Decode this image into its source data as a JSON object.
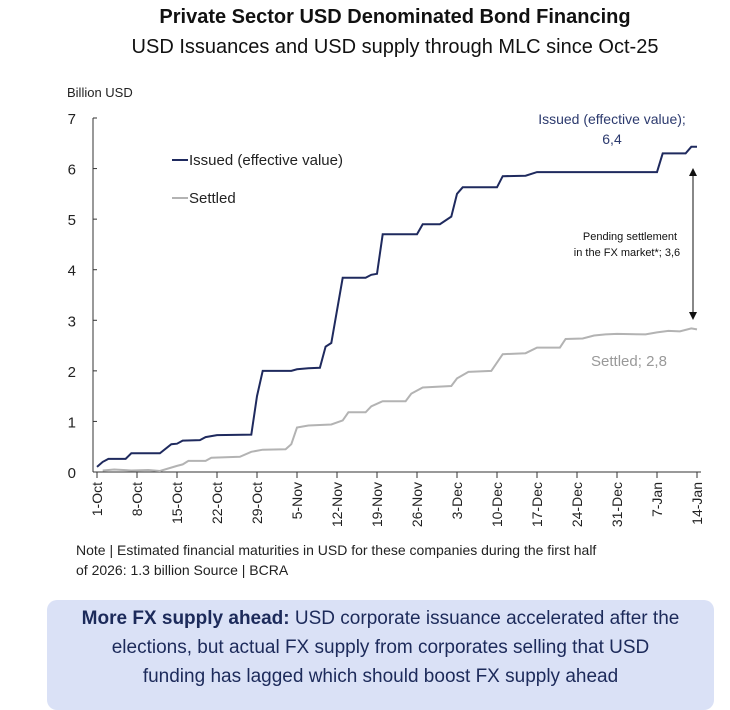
{
  "chart_data": {
    "type": "line",
    "title": "Private Sector USD Denominated Bond Financing",
    "subtitle": "USD Issuances and USD supply through MLC since Oct-25",
    "ylabel": "Billion USD",
    "ylim": [
      0,
      7
    ],
    "yticks": [
      "0",
      "1",
      "2",
      "3",
      "4",
      "5",
      "6",
      "7"
    ],
    "xlim": [
      "2025-10-01",
      "2026-01-14"
    ],
    "xticks": [
      {
        "date": "2025-10-01",
        "label": "1-Oct"
      },
      {
        "date": "2025-10-08",
        "label": "8-Oct"
      },
      {
        "date": "2025-10-15",
        "label": "15-Oct"
      },
      {
        "date": "2025-10-22",
        "label": "22-Oct"
      },
      {
        "date": "2025-10-29",
        "label": "29-Oct"
      },
      {
        "date": "2025-11-05",
        "label": "5-Nov"
      },
      {
        "date": "2025-11-12",
        "label": "12-Nov"
      },
      {
        "date": "2025-11-19",
        "label": "19-Nov"
      },
      {
        "date": "2025-11-26",
        "label": "26-Nov"
      },
      {
        "date": "2025-12-03",
        "label": "3-Dec"
      },
      {
        "date": "2025-12-10",
        "label": "10-Dec"
      },
      {
        "date": "2025-12-17",
        "label": "17-Dec"
      },
      {
        "date": "2025-12-24",
        "label": "24-Dec"
      },
      {
        "date": "2025-12-31",
        "label": "31-Dec"
      },
      {
        "date": "2026-01-07",
        "label": "7-Jan"
      },
      {
        "date": "2026-01-14",
        "label": "14-Jan"
      }
    ],
    "grid": false,
    "legend_placement": "top-left",
    "series": [
      {
        "name": "Issued (effective value)",
        "color": "#1f2a5e",
        "points": [
          [
            "2025-10-01",
            0.1
          ],
          [
            "2025-10-02",
            0.2
          ],
          [
            "2025-10-03",
            0.26
          ],
          [
            "2025-10-06",
            0.26
          ],
          [
            "2025-10-07",
            0.37
          ],
          [
            "2025-10-12",
            0.37
          ],
          [
            "2025-10-14",
            0.55
          ],
          [
            "2025-10-15",
            0.56
          ],
          [
            "2025-10-16",
            0.62
          ],
          [
            "2025-10-19",
            0.63
          ],
          [
            "2025-10-20",
            0.69
          ],
          [
            "2025-10-22",
            0.73
          ],
          [
            "2025-10-28",
            0.74
          ],
          [
            "2025-10-29",
            1.5
          ],
          [
            "2025-10-30",
            2.0
          ],
          [
            "2025-11-04",
            2.0
          ],
          [
            "2025-11-05",
            2.03
          ],
          [
            "2025-11-07",
            2.05
          ],
          [
            "2025-11-09",
            2.06
          ],
          [
            "2025-11-10",
            2.48
          ],
          [
            "2025-11-11",
            2.55
          ],
          [
            "2025-11-13",
            3.84
          ],
          [
            "2025-11-17",
            3.84
          ],
          [
            "2025-11-18",
            3.9
          ],
          [
            "2025-11-19",
            3.92
          ],
          [
            "2025-11-20",
            4.7
          ],
          [
            "2025-11-26",
            4.7
          ],
          [
            "2025-11-27",
            4.9
          ],
          [
            "2025-11-30",
            4.9
          ],
          [
            "2025-12-02",
            5.05
          ],
          [
            "2025-12-03",
            5.5
          ],
          [
            "2025-12-04",
            5.63
          ],
          [
            "2025-12-10",
            5.63
          ],
          [
            "2025-12-11",
            5.85
          ],
          [
            "2025-12-15",
            5.86
          ],
          [
            "2025-12-17",
            5.93
          ],
          [
            "2026-01-07",
            5.93
          ],
          [
            "2026-01-08",
            6.3
          ],
          [
            "2026-01-12",
            6.3
          ],
          [
            "2026-01-13",
            6.43
          ],
          [
            "2026-01-14",
            6.43
          ]
        ]
      },
      {
        "name": "Settled",
        "color": "#b3b3b3",
        "points": [
          [
            "2025-10-02",
            0.03
          ],
          [
            "2025-10-04",
            0.05
          ],
          [
            "2025-10-07",
            0.03
          ],
          [
            "2025-10-10",
            0.04
          ],
          [
            "2025-10-12",
            0.02
          ],
          [
            "2025-10-15",
            0.12
          ],
          [
            "2025-10-16",
            0.15
          ],
          [
            "2025-10-17",
            0.22
          ],
          [
            "2025-10-20",
            0.22
          ],
          [
            "2025-10-21",
            0.28
          ],
          [
            "2025-10-26",
            0.3
          ],
          [
            "2025-10-28",
            0.4
          ],
          [
            "2025-10-30",
            0.44
          ],
          [
            "2025-11-03",
            0.45
          ],
          [
            "2025-11-04",
            0.55
          ],
          [
            "2025-11-05",
            0.88
          ],
          [
            "2025-11-07",
            0.92
          ],
          [
            "2025-11-11",
            0.94
          ],
          [
            "2025-11-13",
            1.02
          ],
          [
            "2025-11-14",
            1.18
          ],
          [
            "2025-11-17",
            1.18
          ],
          [
            "2025-11-18",
            1.3
          ],
          [
            "2025-11-20",
            1.4
          ],
          [
            "2025-11-24",
            1.4
          ],
          [
            "2025-11-25",
            1.55
          ],
          [
            "2025-11-27",
            1.67
          ],
          [
            "2025-12-02",
            1.7
          ],
          [
            "2025-12-03",
            1.85
          ],
          [
            "2025-12-05",
            1.98
          ],
          [
            "2025-12-09",
            2.0
          ],
          [
            "2025-12-11",
            2.33
          ],
          [
            "2025-12-15",
            2.35
          ],
          [
            "2025-12-17",
            2.46
          ],
          [
            "2025-12-21",
            2.46
          ],
          [
            "2025-12-22",
            2.63
          ],
          [
            "2025-12-25",
            2.64
          ],
          [
            "2025-12-27",
            2.7
          ],
          [
            "2025-12-29",
            2.72
          ],
          [
            "2025-12-31",
            2.73
          ],
          [
            "2026-01-05",
            2.72
          ],
          [
            "2026-01-07",
            2.76
          ],
          [
            "2026-01-09",
            2.79
          ],
          [
            "2026-01-11",
            2.78
          ],
          [
            "2026-01-13",
            2.84
          ],
          [
            "2026-01-14",
            2.82
          ]
        ]
      }
    ],
    "annotations": {
      "issued_label": [
        "Issued (effective value);",
        "6,4"
      ],
      "pending_label": [
        "Pending settlement",
        "in the FX market*; 3,6"
      ],
      "settled_label": "Settled; 2,8"
    }
  },
  "note": [
    "Note | Estimated financial maturities in USD for these companies during the first half",
    "of 2026: 1.3 billion Source | BCRA"
  ],
  "callout": {
    "heading": "More FX supply ahead:",
    "line1": " USD corporate issuance accelerated after the",
    "line2": "elections, but actual FX supply from corporates selling that USD",
    "line3": "funding has lagged which should boost FX supply ahead"
  }
}
